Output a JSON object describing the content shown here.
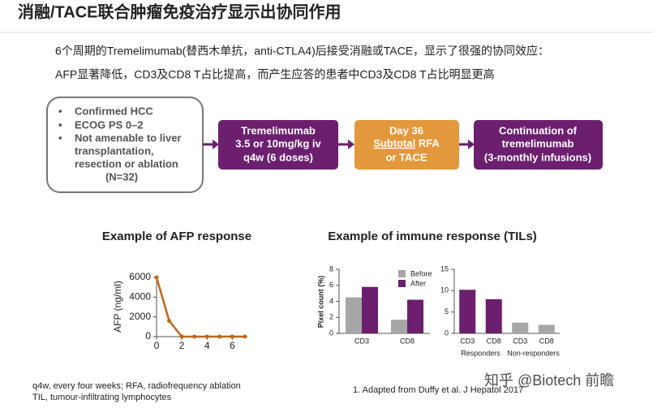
{
  "header": {
    "title": "消融/TACE联合肿瘤免疫治疗显示出协同作用"
  },
  "intro": [
    "6个周期的Tremelimumab(替西木单抗，anti-CTLA4)后接受消融或TACE，显示了很强的协同效应：",
    "AFP显著降低，CD3及CD8 T占比提高，而产生应答的患者中CD3及CD8 T占比明显更高"
  ],
  "flow": {
    "eligibility": {
      "bullets": [
        [
          "Confirmed HCC"
        ],
        [
          "ECOG PS 0–2"
        ],
        [
          "Not amenable to liver",
          "transplantation,",
          "resection or ablation"
        ]
      ],
      "note": "(N=32)"
    },
    "steps": [
      {
        "lines": [
          "Tremelimumab",
          "3.5 or 10mg/kg iv",
          "q4w (6 doses)"
        ]
      },
      {
        "lines": [
          "Day 36",
          "Subtotal",
          "RFA",
          "or TACE"
        ]
      },
      {
        "lines": [
          "Continuation of",
          "tremelimumab",
          "(3-monthly infusions)"
        ]
      }
    ]
  },
  "chart_data": [
    {
      "type": "line",
      "title": "Example of AFP response",
      "y_label": "AFP (ng/ml)",
      "color": "#c0661a",
      "x": [
        0,
        1,
        2,
        3,
        4,
        5,
        6,
        7
      ],
      "values": [
        6000,
        1600,
        0,
        0,
        0,
        0,
        0,
        0
      ],
      "xlim": [
        0,
        7.2
      ],
      "xticks": [
        0,
        2,
        4,
        6
      ],
      "ylim": [
        0,
        6000
      ],
      "yticks": [
        0,
        2000,
        4000,
        6000
      ]
    },
    {
      "type": "bar",
      "title": "Example of immune response (TILs)",
      "y_label": "Pixel count (%)",
      "categories": [
        "CD3",
        "CD8"
      ],
      "series": [
        {
          "name": "Before",
          "color": "#a6a6a6",
          "values": [
            4.5,
            1.7
          ]
        },
        {
          "name": "After",
          "color": "#6b1f6e",
          "values": [
            5.8,
            4.2
          ]
        }
      ],
      "ylim": [
        0,
        8
      ],
      "yticks": [
        0,
        2,
        4,
        6,
        8
      ]
    },
    {
      "type": "bar",
      "categories": [
        "CD3",
        "CD8",
        "CD3",
        "CD8"
      ],
      "values": [
        10.2,
        8,
        2.5,
        2
      ],
      "colors": [
        "#6b1f6e",
        "#6b1f6e",
        "#a6a6a6",
        "#a6a6a6"
      ],
      "group_labels": [
        "Responders",
        "Non-responders"
      ],
      "ylim": [
        0,
        15
      ],
      "yticks": [
        0,
        5,
        10,
        15
      ]
    }
  ],
  "footnotes": [
    "q4w, every four weeks; RFA, radiofrequency ablation",
    "TIL, tumour-infiltrating lymphocytes"
  ],
  "reference": "1. Adapted from Duffy et al. J Hepatol 2017",
  "watermark": "知乎 @Biotech 前瞻"
}
